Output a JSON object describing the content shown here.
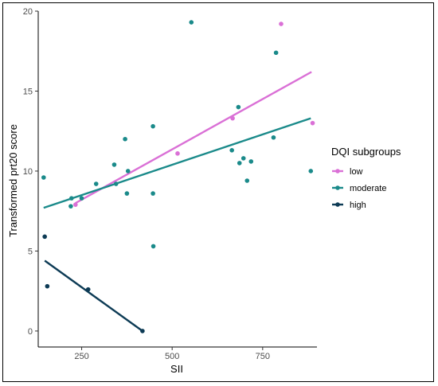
{
  "chart_data": {
    "type": "scatter",
    "xlabel": "SII",
    "ylabel": "Transformed prt20 score",
    "xlim": [
      130,
      900
    ],
    "ylim": [
      -1,
      20
    ],
    "x_ticks": [
      250,
      500,
      750
    ],
    "y_ticks": [
      0,
      5,
      10,
      15,
      20
    ],
    "x_tick_labels": [
      "250",
      "500",
      "750"
    ],
    "y_tick_labels": [
      "0",
      "5",
      "10",
      "15",
      "20"
    ],
    "grid": false,
    "legend": {
      "title": "DQI subgroups",
      "position": "right"
    },
    "series": [
      {
        "name": "low",
        "color": "#DA70D6",
        "points": [
          {
            "x": 233,
            "y": 7.9
          },
          {
            "x": 515,
            "y": 11.1
          },
          {
            "x": 667,
            "y": 13.3
          },
          {
            "x": 801,
            "y": 19.2
          },
          {
            "x": 888,
            "y": 13.0
          }
        ],
        "fit": {
          "x": [
            233,
            885
          ],
          "y": [
            8.0,
            16.2
          ]
        }
      },
      {
        "name": "moderate",
        "color": "#1A8A8A",
        "points": [
          {
            "x": 145,
            "y": 9.6
          },
          {
            "x": 220,
            "y": 7.8
          },
          {
            "x": 222,
            "y": 8.3
          },
          {
            "x": 250,
            "y": 8.3
          },
          {
            "x": 290,
            "y": 9.2
          },
          {
            "x": 340,
            "y": 10.4
          },
          {
            "x": 345,
            "y": 9.2
          },
          {
            "x": 370,
            "y": 12.0
          },
          {
            "x": 375,
            "y": 8.6
          },
          {
            "x": 378,
            "y": 10.0
          },
          {
            "x": 447,
            "y": 12.8
          },
          {
            "x": 447,
            "y": 8.6
          },
          {
            "x": 448,
            "y": 5.3
          },
          {
            "x": 553,
            "y": 19.3
          },
          {
            "x": 665,
            "y": 11.3
          },
          {
            "x": 683,
            "y": 14.0
          },
          {
            "x": 686,
            "y": 10.5
          },
          {
            "x": 697,
            "y": 10.8
          },
          {
            "x": 707,
            "y": 9.4
          },
          {
            "x": 718,
            "y": 10.6
          },
          {
            "x": 780,
            "y": 12.1
          },
          {
            "x": 787,
            "y": 17.4
          },
          {
            "x": 883,
            "y": 10.0
          }
        ],
        "fit": {
          "x": [
            145,
            883
          ],
          "y": [
            7.7,
            13.3
          ]
        }
      },
      {
        "name": "high",
        "color": "#0D3B55",
        "points": [
          {
            "x": 148,
            "y": 5.9
          },
          {
            "x": 155,
            "y": 2.8
          },
          {
            "x": 268,
            "y": 2.6
          },
          {
            "x": 418,
            "y": 0.0
          }
        ],
        "fit": {
          "x": [
            148,
            418
          ],
          "y": [
            4.4,
            0.0
          ]
        }
      }
    ]
  }
}
